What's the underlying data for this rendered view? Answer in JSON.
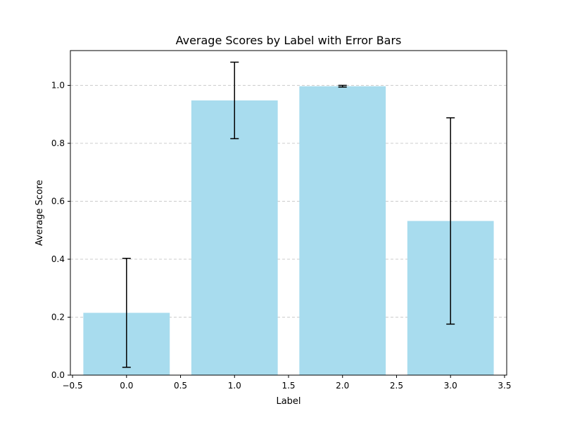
{
  "chart_data": {
    "type": "bar",
    "title": "Average Scores by Label with Error Bars",
    "xlabel": "Label",
    "ylabel": "Average Score",
    "x": [
      0,
      1,
      2,
      3
    ],
    "values": [
      0.215,
      0.948,
      0.997,
      0.532
    ],
    "errors": [
      0.188,
      0.132,
      0.003,
      0.356
    ],
    "xlim": [
      -0.52,
      3.52
    ],
    "ylim": [
      0,
      1.12
    ],
    "xticks": [
      -0.5,
      0.0,
      0.5,
      1.0,
      1.5,
      2.0,
      2.5,
      3.0,
      3.5
    ],
    "xtick_labels": [
      "−0.5",
      "0.0",
      "0.5",
      "1.0",
      "1.5",
      "2.0",
      "2.5",
      "3.0",
      "3.5"
    ],
    "yticks": [
      0.0,
      0.2,
      0.4,
      0.6,
      0.8,
      1.0
    ],
    "ytick_labels": [
      "0.0",
      "0.2",
      "0.4",
      "0.6",
      "0.8",
      "1.0"
    ],
    "grid": "y-dashed",
    "bar_color": "#a8dcee",
    "error_color": "#000000",
    "grid_color": "#cccccc"
  }
}
